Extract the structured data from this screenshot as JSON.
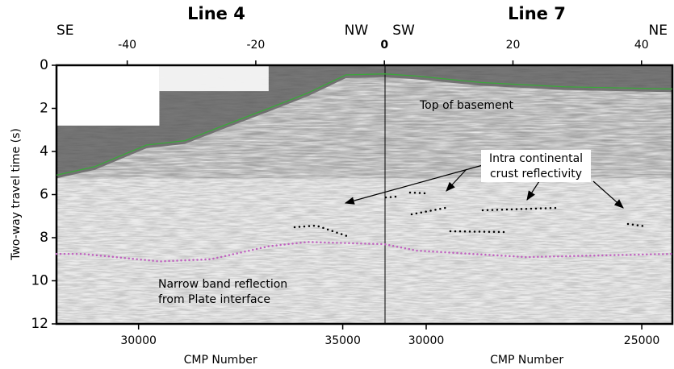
{
  "chart_data": {
    "type": "seismic",
    "panels": [
      {
        "title": "Line 4",
        "left_label": "SE",
        "right_label": "NW"
      },
      {
        "title": "Line 7",
        "left_label": "SW",
        "right_label": "NE"
      }
    ],
    "ylabel": "Two-way travel time (s)",
    "ylim": [
      12,
      0
    ],
    "yticks": [
      0,
      2,
      4,
      6,
      8,
      10,
      12
    ],
    "xlim": [
      -51,
      44.8
    ],
    "xticks": [
      -40,
      -20,
      0,
      20,
      40
    ],
    "bottom_axes": [
      {
        "label": "CMP Number",
        "xlim": [
          27990,
          36020
        ],
        "xticks": [
          30000,
          35000
        ]
      },
      {
        "label": "CMP Number",
        "xlim": [
          30970,
          24290
        ],
        "xticks": [
          30000,
          25000
        ]
      }
    ],
    "horizons": [
      {
        "color": "#3aa83a",
        "style": "solid",
        "x": [
          -51,
          -45,
          -37,
          -31,
          -25,
          -18,
          -12,
          -6,
          0,
          5,
          15,
          28,
          44.8
        ],
        "values": [
          5.1,
          4.7,
          3.7,
          3.5,
          2.8,
          2.0,
          1.3,
          0.45,
          0.4,
          0.5,
          0.8,
          1.0,
          1.1
        ]
      },
      {
        "color": "#c060c0",
        "style": "dotted",
        "x": [
          -51,
          -47,
          -35,
          -27,
          -18,
          -12,
          0,
          5,
          22,
          44.8
        ],
        "values": [
          8.75,
          8.75,
          9.1,
          9.0,
          8.4,
          8.2,
          8.3,
          8.6,
          8.9,
          8.75
        ]
      }
    ],
    "annotations": [
      {
        "text": [
          "Top of basement"
        ]
      },
      {
        "text": [
          "Intra continental",
          "crust reflectivity"
        ]
      },
      {
        "text": [
          "Narrow band reflection",
          "from Plate interface"
        ]
      }
    ]
  }
}
